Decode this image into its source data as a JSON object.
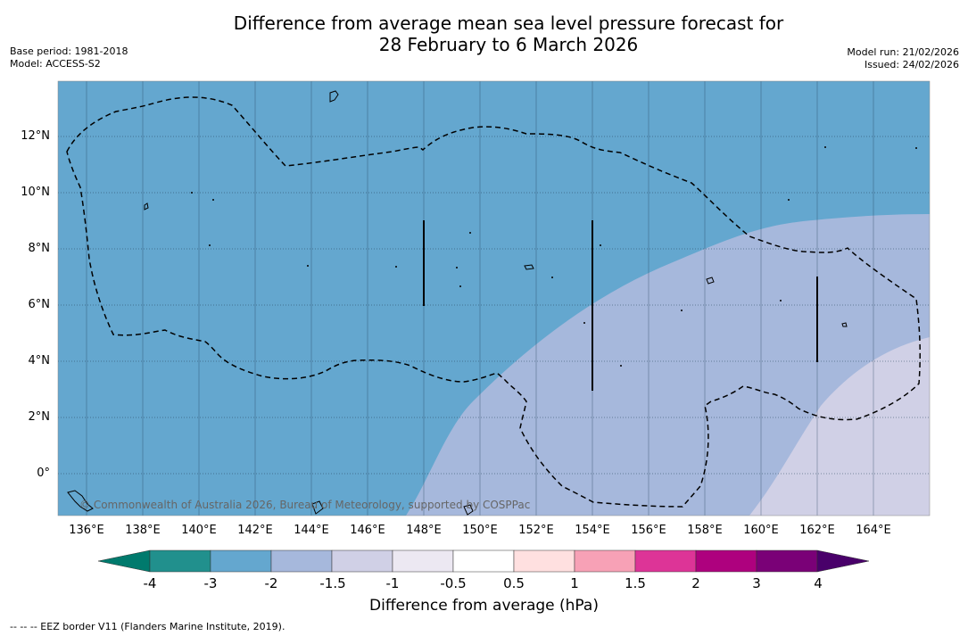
{
  "title": {
    "line1": "Difference from average mean sea level pressure forecast for",
    "line2": "28 February to 6 March 2026"
  },
  "meta_left": {
    "base_period": "Base period: 1981-2018",
    "model": "Model: ACCESS-S2"
  },
  "meta_right": {
    "model_run": "Model run: 21/02/2026",
    "issued": "Issued: 24/02/2026"
  },
  "axes": {
    "lat_ticks": [
      "12°N",
      "10°N",
      "8°N",
      "6°N",
      "4°N",
      "2°N",
      "0°"
    ],
    "lon_ticks": [
      "136°E",
      "138°E",
      "140°E",
      "142°E",
      "144°E",
      "146°E",
      "148°E",
      "150°E",
      "152°E",
      "154°E",
      "156°E",
      "158°E",
      "160°E",
      "162°E",
      "164°E"
    ]
  },
  "copyright": "© Commonwealth of Australia 2026, Bureau of Meteorology, supported by COSPPac",
  "colorbar": {
    "title": "Difference from average (hPa)",
    "tick_labels": [
      "-4",
      "-3",
      "-2",
      "-1.5",
      "-1",
      "-0.5",
      "0.5",
      "1",
      "1.5",
      "2",
      "3",
      "4"
    ],
    "colors": [
      "#007a6d",
      "#21908d",
      "#64a7cf",
      "#a6b8dc",
      "#d0d0e6",
      "#ece8f2",
      "#ffffff",
      "#ffe0e0",
      "#f7a1b6",
      "#dd3497",
      "#ae017e",
      "#7a0177",
      "#49006a"
    ]
  },
  "legend_note": "-- -- -- EEZ border V11 (Flanders Marine Institute, 2019)."
}
